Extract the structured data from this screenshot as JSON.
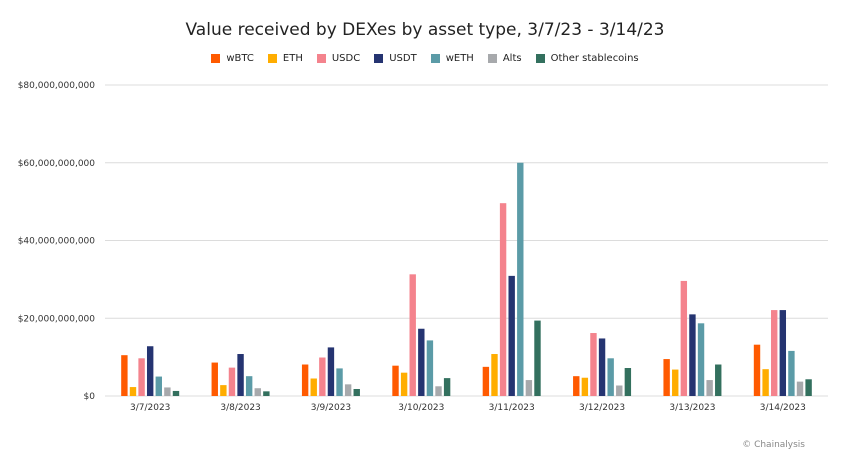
{
  "chart_data": {
    "type": "bar",
    "title": "Value received by DEXes by asset type, 3/7/23 - 3/14/23",
    "categories": [
      "3/7/2023",
      "3/8/2023",
      "3/9/2023",
      "3/10/2023",
      "3/11/2023",
      "3/12/2023",
      "3/13/2023",
      "3/14/2023"
    ],
    "ylim": [
      0,
      80000000000
    ],
    "yticks": [
      0,
      20000000000,
      40000000000,
      60000000000,
      80000000000
    ],
    "ytick_labels": [
      "$0",
      "$20,000,000,000",
      "$40,000,000,000",
      "$60,000,000,000",
      "$80,000,000,000"
    ],
    "grid": true,
    "legend_position": "top-center",
    "series": [
      {
        "name": "wBTC",
        "color": "#ff5a00",
        "values": [
          10500000000,
          8600000000,
          8100000000,
          7800000000,
          7500000000,
          5100000000,
          9500000000,
          13200000000
        ]
      },
      {
        "name": "ETH",
        "color": "#ffad00",
        "values": [
          2300000000,
          2800000000,
          4500000000,
          6000000000,
          10800000000,
          4700000000,
          6800000000,
          6900000000
        ]
      },
      {
        "name": "USDC",
        "color": "#f4838d",
        "values": [
          9700000000,
          7300000000,
          9900000000,
          31300000000,
          49600000000,
          16200000000,
          29600000000,
          22100000000
        ]
      },
      {
        "name": "USDT",
        "color": "#253471",
        "values": [
          12800000000,
          10800000000,
          12500000000,
          17300000000,
          30900000000,
          14800000000,
          21000000000,
          22100000000
        ]
      },
      {
        "name": "wETH",
        "color": "#5b9ba7",
        "values": [
          5000000000,
          5100000000,
          7100000000,
          14300000000,
          60000000000,
          9700000000,
          18700000000,
          11600000000
        ]
      },
      {
        "name": "Alts",
        "color": "#a7a9ac",
        "values": [
          2200000000,
          2000000000,
          3000000000,
          2500000000,
          4100000000,
          2700000000,
          4100000000,
          3700000000
        ]
      },
      {
        "name": "Other stablecoins",
        "color": "#33705e",
        "values": [
          1300000000,
          1200000000,
          1800000000,
          4600000000,
          19400000000,
          7200000000,
          8100000000,
          4300000000
        ]
      }
    ]
  },
  "credit": "© Chainalysis"
}
